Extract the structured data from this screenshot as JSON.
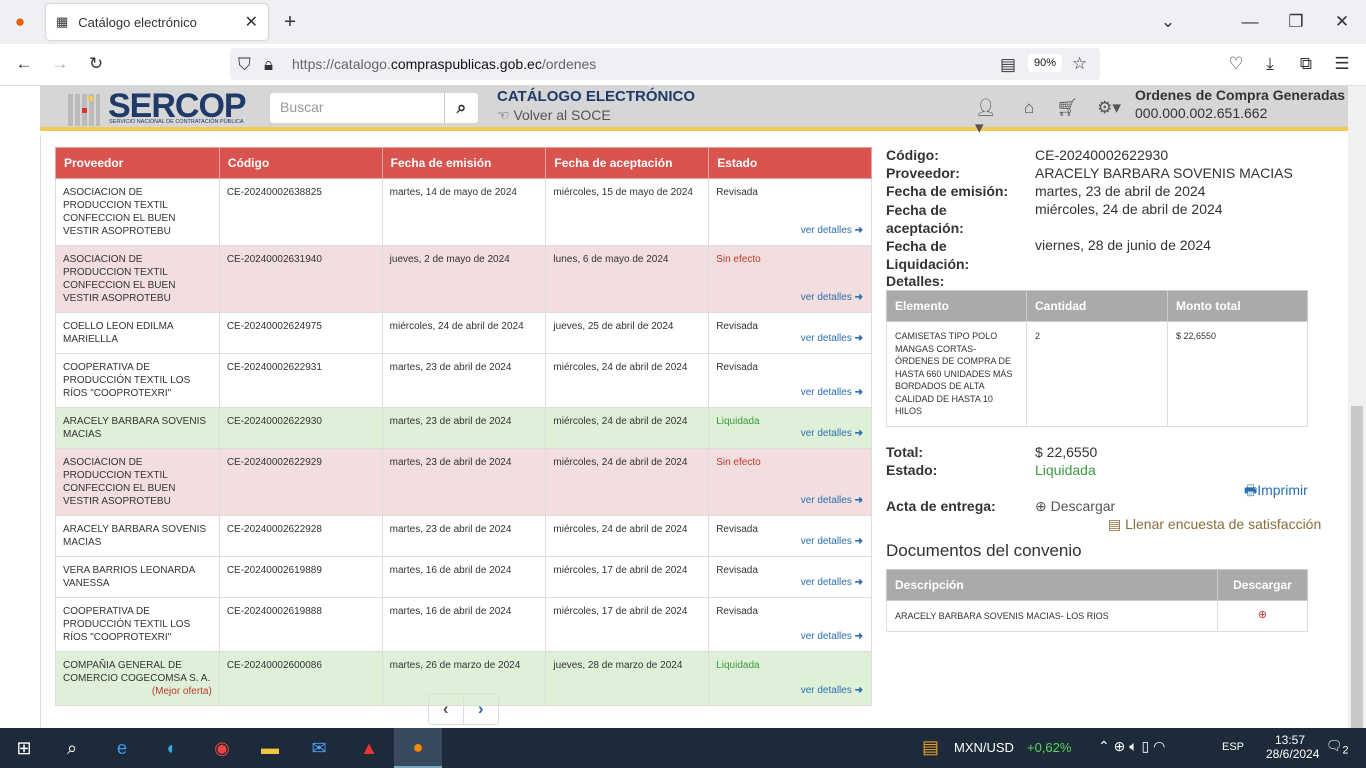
{
  "browser": {
    "tab_title": "Catálogo electrónico",
    "url_prefix": "https://catalogo.",
    "url_domain": "compraspublicas.gob.ec",
    "url_path": "/ordenes",
    "zoom": "90%"
  },
  "header": {
    "logo": "SERCOP",
    "logo_sub": "SERVICIO NACIONAL DE CONTRATACIÓN PÚBLICA",
    "search_placeholder": "Buscar",
    "title": "CATÁLOGO ELECTRÓNICO",
    "back_link": "Volver al SOCE",
    "orders_label": "Ordenes de Compra Generadas",
    "orders_count": "000.000.002.651.662"
  },
  "table": {
    "columns": [
      "Proveedor",
      "Código",
      "Fecha de emisión",
      "Fecha de aceptación",
      "Estado"
    ],
    "details_label": "ver detalles",
    "rows": [
      {
        "proveedor": "ASOCIACION DE PRODUCCION TEXTIL CONFECCION EL BUEN VESTIR ASOPROTEBU",
        "codigo": "CE-20240002638825",
        "emision": "martes, 14 de mayo de 2024",
        "aceptacion": "miércoles, 15 de mayo de 2024",
        "estado": "Revisada"
      },
      {
        "proveedor": "ASOCIACION DE PRODUCCION TEXTIL CONFECCION EL BUEN VESTIR ASOPROTEBU",
        "codigo": "CE-20240002631940",
        "emision": "jueves, 2 de mayo de 2024",
        "aceptacion": "lunes, 6 de mayo de 2024",
        "estado": "Sin efecto"
      },
      {
        "proveedor": "COELLO LEON EDILMA MARIELLLA",
        "codigo": "CE-20240002624975",
        "emision": "miércoles, 24 de abril de 2024",
        "aceptacion": "jueves, 25 de abril de 2024",
        "estado": "Revisada"
      },
      {
        "proveedor": "COOPERATIVA DE PRODUCCIÓN TEXTIL LOS RÍOS \"COOPROTEXRI\"",
        "codigo": "CE-20240002622931",
        "emision": "martes, 23 de abril de 2024",
        "aceptacion": "miércoles, 24 de abril de 2024",
        "estado": "Revisada"
      },
      {
        "proveedor": "ARACELY BARBARA SOVENIS MACIAS",
        "codigo": "CE-20240002622930",
        "emision": "martes, 23 de abril de 2024",
        "aceptacion": "miércoles, 24 de abril de 2024",
        "estado": "Liquidada"
      },
      {
        "proveedor": "ASOCIACION DE PRODUCCION TEXTIL CONFECCION EL BUEN VESTIR ASOPROTEBU",
        "codigo": "CE-20240002622929",
        "emision": "martes, 23 de abril de 2024",
        "aceptacion": "miércoles, 24 de abril de 2024",
        "estado": "Sin efecto"
      },
      {
        "proveedor": "ARACELY BARBARA SOVENIS MACIAS",
        "codigo": "CE-20240002622928",
        "emision": "martes, 23 de abril de 2024",
        "aceptacion": "miércoles, 24 de abril de 2024",
        "estado": "Revisada"
      },
      {
        "proveedor": "VERA BARRIOS LEONARDA VANESSA",
        "codigo": "CE-20240002619889",
        "emision": "martes, 16 de abril de 2024",
        "aceptacion": "miércoles, 17 de abril de 2024",
        "estado": "Revisada"
      },
      {
        "proveedor": "COOPERATIVA DE PRODUCCIÓN TEXTIL LOS RÍOS \"COOPROTEXRI\"",
        "codigo": "CE-20240002619888",
        "emision": "martes, 16 de abril de 2024",
        "aceptacion": "miércoles, 17 de abril de 2024",
        "estado": "Revisada"
      },
      {
        "proveedor": "COMPAÑIA GENERAL DE COMERCIO COGECOMSA S. A.",
        "note": "(Mejor oferta)",
        "codigo": "CE-20240002600086",
        "emision": "martes, 26 de marzo de 2024",
        "aceptacion": "jueves, 28 de marzo de 2024",
        "estado": "Liquidada"
      }
    ]
  },
  "detail": {
    "codigo_label": "Código:",
    "codigo": "CE-20240002622930",
    "proveedor_label": "Proveedor:",
    "proveedor": "ARACELY BARBARA SOVENIS MACIAS",
    "emision_label": "Fecha de emisión:",
    "emision": "martes, 23 de abril de 2024",
    "aceptacion_label": "Fecha de aceptación:",
    "aceptacion": "miércoles, 24 de abril de 2024",
    "liquidacion_label": "Fecha de Liquidación:",
    "liquidacion": "viernes, 28 de junio de 2024",
    "detalles_label": "Detalles:",
    "items_columns": [
      "Elemento",
      "Cantidad",
      "Monto total"
    ],
    "items": [
      {
        "elemento": "CAMISETAS TIPO POLO MANGAS CORTAS- ÓRDENES DE COMPRA DE HASTA 660 UNIDADES MÁS BORDADOS DE ALTA CALIDAD DE HASTA 10 HILOS",
        "cantidad": "2",
        "monto": "$ 22,6550"
      }
    ],
    "total_label": "Total:",
    "total": "$ 22,6550",
    "estado_label": "Estado:",
    "estado": "Liquidada",
    "print": "Imprimir",
    "acta_label": "Acta de entrega:",
    "download": "Descargar",
    "survey": "Llenar encuesta de satisfacción",
    "docs_title": "Documentos del convenio",
    "docs_columns": [
      "Descripción",
      "Descargar"
    ],
    "docs": [
      {
        "descripcion": "ARACELY BARBARA SOVENIS MACIAS- LOS RIOS"
      }
    ]
  },
  "taskbar": {
    "ticker": "MXN/USD",
    "change": "+0,62%",
    "lang": "ESP",
    "time": "13:57",
    "date": "28/6/2024",
    "notifications": "2"
  },
  "colors": {
    "header_red": "#d9534f",
    "liquidada": "#3c9a3c",
    "sin_efecto": "#c0392b",
    "link": "#2a6fb0"
  }
}
